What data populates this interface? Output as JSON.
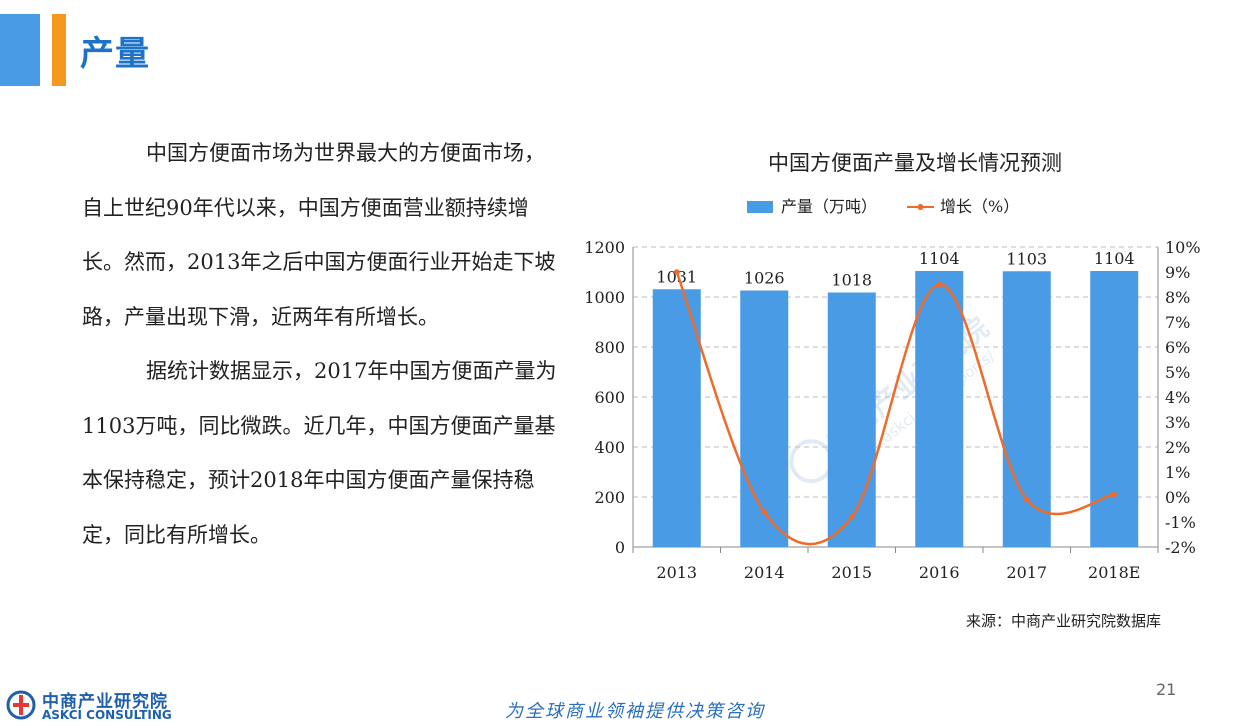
{
  "header": {
    "title": "产量"
  },
  "body": {
    "paragraphs": [
      "中国方便面市场为世界最大的方便面市场，自上世纪90年代以来，中国方便面营业额持续增长。然而，2013年之后中国方便面行业开始走下坡路，产量出现下滑，近两年有所增长。",
      "据统计数据显示，2017年中国方便面产量为1103万吨，同比微跌。近几年，中国方便面产量基本保持稳定，预计2018年中国方便面产量保持稳定，同比有所增长。"
    ]
  },
  "chart_data": {
    "type": "bar",
    "title": "中国方便面产量及增长情况预测",
    "categories": [
      "2013",
      "2014",
      "2015",
      "2016",
      "2017",
      "2018E"
    ],
    "series": [
      {
        "name": "产量（万吨）",
        "type": "bar",
        "axis": "left",
        "values": [
          1031,
          1026,
          1018,
          1104,
          1103,
          1104
        ],
        "color": "#4A9BE6"
      },
      {
        "name": "增长（%）",
        "type": "line",
        "axis": "right",
        "values": [
          9.0,
          -0.6,
          -0.8,
          8.5,
          -0.1,
          0.1
        ],
        "color": "#EE6B2B"
      }
    ],
    "left_axis": {
      "min": 0,
      "max": 1200,
      "ticks": [
        "0",
        "200",
        "400",
        "600",
        "800",
        "1000",
        "1200"
      ]
    },
    "right_axis": {
      "min": -2,
      "max": 10,
      "ticks": [
        "-2%",
        "-1%",
        "0%",
        "1%",
        "2%",
        "3%",
        "4%",
        "5%",
        "6%",
        "7%",
        "8%",
        "9%",
        "10%"
      ]
    },
    "legend_position": "top-center",
    "grid": true,
    "watermark": {
      "cn": "中商产业研究院",
      "en": "www.askci.com/reports/"
    }
  },
  "source": "来源：中商产业研究院数据库",
  "footer": {
    "slogan": "为全球商业领袖提供决策咨询",
    "page_number": "21",
    "logo_cn": "中商产业研究院",
    "logo_en": "ASKCI CONSULTING"
  }
}
